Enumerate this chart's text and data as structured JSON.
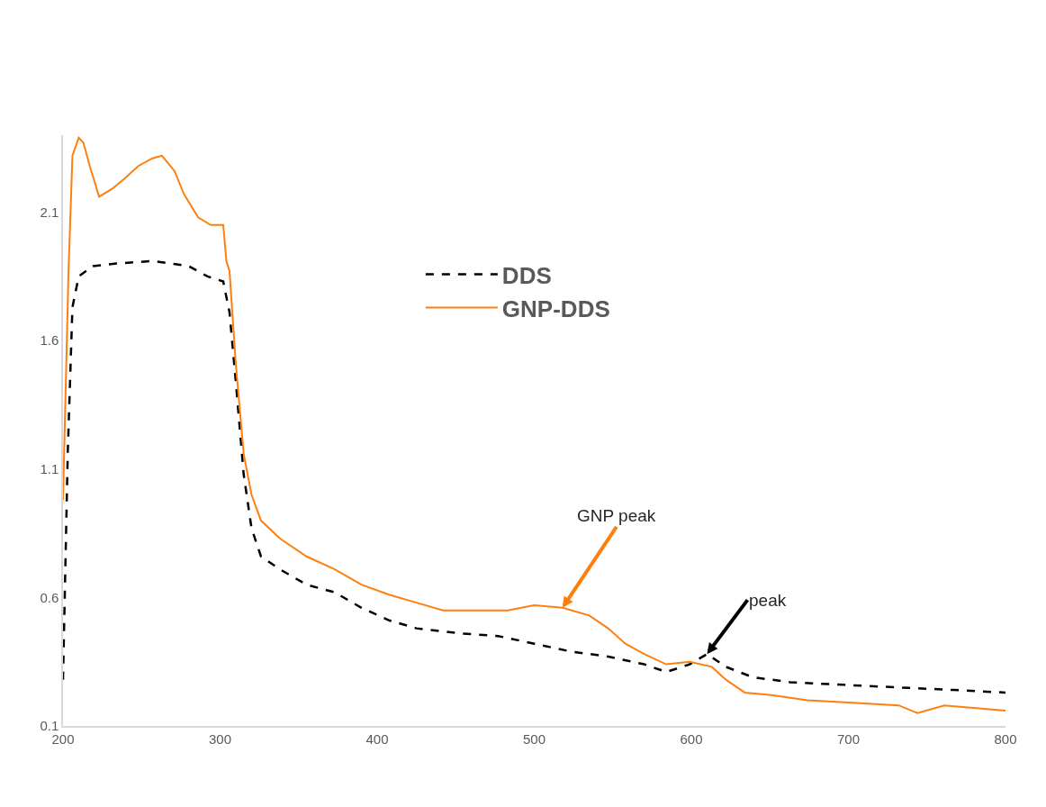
{
  "chart_data": {
    "type": "line",
    "xlim": [
      200,
      800
    ],
    "xticks": [
      200,
      300,
      400,
      500,
      600,
      700,
      800
    ],
    "ylim": [
      0.1,
      2.4
    ],
    "yticks": [
      0.1,
      0.6,
      1.1,
      1.6,
      2.1
    ],
    "legend": "top",
    "marker": "none",
    "series": [
      {
        "name": "DDS",
        "color": "#000000",
        "line_style": "dashed",
        "x": [
          200,
          203,
          206,
          210,
          219,
          234,
          257,
          280,
          292,
          302,
          306,
          310,
          315,
          320,
          326,
          338,
          355,
          373,
          390,
          408,
          425,
          454,
          477,
          500,
          523,
          547,
          570,
          584,
          599,
          610,
          622,
          639,
          663,
          697,
          732,
          767,
          800
        ],
        "values": [
          0.28,
          1.16,
          1.73,
          1.85,
          1.89,
          1.9,
          1.91,
          1.89,
          1.85,
          1.83,
          1.71,
          1.44,
          1.08,
          0.87,
          0.76,
          0.71,
          0.65,
          0.62,
          0.56,
          0.51,
          0.48,
          0.46,
          0.45,
          0.42,
          0.39,
          0.37,
          0.34,
          0.31,
          0.34,
          0.38,
          0.33,
          0.29,
          0.27,
          0.26,
          0.25,
          0.24,
          0.23
        ]
      },
      {
        "name": "GNP-DDS",
        "color": "#ff7f0e",
        "line_style": "solid",
        "x": [
          200,
          203.5,
          206,
          210,
          213,
          217,
          223,
          231,
          239,
          248,
          257,
          263,
          271,
          277,
          286,
          294,
          302,
          304,
          306,
          310,
          315,
          320,
          326,
          338,
          355,
          373,
          390,
          408,
          425,
          442,
          466,
          483,
          500,
          518,
          535,
          547,
          558,
          570,
          584,
          599,
          613,
          622,
          634,
          651,
          674,
          703,
          732,
          744,
          761,
          800
        ],
        "values": [
          0.98,
          1.87,
          2.32,
          2.39,
          2.37,
          2.28,
          2.16,
          2.19,
          2.23,
          2.28,
          2.31,
          2.32,
          2.26,
          2.17,
          2.08,
          2.05,
          2.05,
          1.91,
          1.87,
          1.51,
          1.16,
          1.0,
          0.9,
          0.83,
          0.76,
          0.71,
          0.65,
          0.61,
          0.58,
          0.55,
          0.55,
          0.55,
          0.57,
          0.56,
          0.53,
          0.48,
          0.42,
          0.38,
          0.34,
          0.35,
          0.33,
          0.28,
          0.23,
          0.22,
          0.2,
          0.19,
          0.18,
          0.15,
          0.18,
          0.16
        ]
      }
    ],
    "annotations": [
      {
        "text": "GNP peak",
        "x": 518,
        "y": 0.56
      },
      {
        "text": "peak",
        "x": 610,
        "y": 0.38
      }
    ]
  }
}
